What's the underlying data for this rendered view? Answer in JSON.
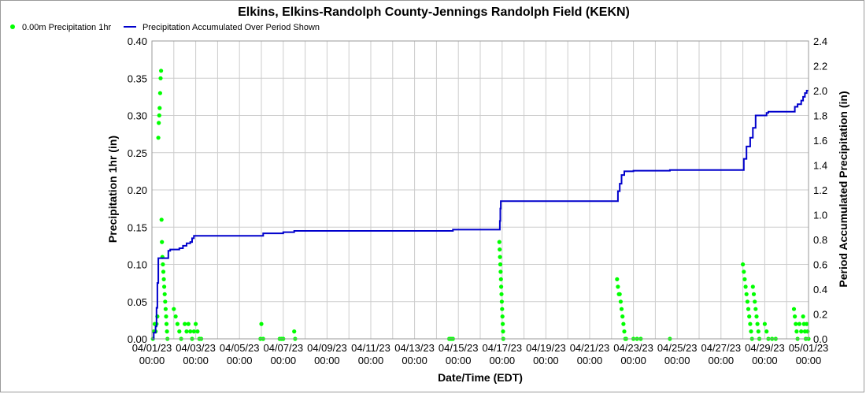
{
  "chart_data": {
    "type": "line",
    "title": "Elkins, Elkins-Randolph County-Jennings Randolph Field (KEKN)",
    "xlabel": "Date/Time (EDT)",
    "ylabel_left": "Precipitation 1hr (in)",
    "ylabel_right": "Period Accumulated Precipitation (in)",
    "ylim_left": [
      0,
      0.4
    ],
    "ylim_right": [
      0,
      2.4
    ],
    "xlim": [
      "2023-04-01T00:00",
      "2023-05-01T00:00"
    ],
    "grid": true,
    "legend_position": "top-left",
    "x_tick_labels": [
      {
        "date": "04/01/23",
        "time": "00:00"
      },
      {
        "date": "04/03/23",
        "time": "00:00"
      },
      {
        "date": "04/05/23",
        "time": "00:00"
      },
      {
        "date": "04/07/23",
        "time": "00:00"
      },
      {
        "date": "04/09/23",
        "time": "00:00"
      },
      {
        "date": "04/11/23",
        "time": "00:00"
      },
      {
        "date": "04/13/23",
        "time": "00:00"
      },
      {
        "date": "04/15/23",
        "time": "00:00"
      },
      {
        "date": "04/17/23",
        "time": "00:00"
      },
      {
        "date": "04/19/23",
        "time": "00:00"
      },
      {
        "date": "04/21/23",
        "time": "00:00"
      },
      {
        "date": "04/23/23",
        "time": "00:00"
      },
      {
        "date": "04/25/23",
        "time": "00:00"
      },
      {
        "date": "04/27/23",
        "time": "00:00"
      },
      {
        "date": "04/29/23",
        "time": "00:00"
      },
      {
        "date": "05/01/23",
        "time": "00:00"
      }
    ],
    "y_left_ticks": [
      "0.00",
      "0.05",
      "0.10",
      "0.15",
      "0.20",
      "0.25",
      "0.30",
      "0.35",
      "0.40"
    ],
    "y_right_ticks": [
      "0.0",
      "0.2",
      "0.4",
      "0.6",
      "0.8",
      "1.0",
      "1.2",
      "1.4",
      "1.6",
      "1.8",
      "2.0",
      "2.2",
      "2.4"
    ],
    "series": [
      {
        "name": "0.00m Precipitation 1hr",
        "type": "scatter",
        "axis": "left",
        "color": "#00ff00",
        "points": [
          [
            "2023-04-01T01:00",
            0.0
          ],
          [
            "2023-04-01T02:00",
            0.01
          ],
          [
            "2023-04-01T03:00",
            0.02
          ],
          [
            "2023-04-01T04:00",
            0.01
          ],
          [
            "2023-04-01T05:00",
            0.02
          ],
          [
            "2023-04-01T06:00",
            0.03
          ],
          [
            "2023-04-01T07:00",
            0.27
          ],
          [
            "2023-04-01T07:30",
            0.29
          ],
          [
            "2023-04-01T08:00",
            0.3
          ],
          [
            "2023-04-01T08:30",
            0.31
          ],
          [
            "2023-04-01T09:00",
            0.33
          ],
          [
            "2023-04-01T09:30",
            0.35
          ],
          [
            "2023-04-01T10:00",
            0.36
          ],
          [
            "2023-04-01T10:30",
            0.16
          ],
          [
            "2023-04-01T11:00",
            0.13
          ],
          [
            "2023-04-01T11:30",
            0.11
          ],
          [
            "2023-04-01T12:00",
            0.1
          ],
          [
            "2023-04-01T12:30",
            0.09
          ],
          [
            "2023-04-01T13:00",
            0.08
          ],
          [
            "2023-04-01T13:30",
            0.07
          ],
          [
            "2023-04-01T14:00",
            0.06
          ],
          [
            "2023-04-01T14:30",
            0.05
          ],
          [
            "2023-04-01T15:00",
            0.04
          ],
          [
            "2023-04-01T15:30",
            0.03
          ],
          [
            "2023-04-01T16:00",
            0.02
          ],
          [
            "2023-04-01T16:30",
            0.01
          ],
          [
            "2023-04-01T17:00",
            0.0
          ],
          [
            "2023-04-02T00:00",
            0.04
          ],
          [
            "2023-04-02T02:00",
            0.03
          ],
          [
            "2023-04-02T04:00",
            0.02
          ],
          [
            "2023-04-02T06:00",
            0.01
          ],
          [
            "2023-04-02T08:00",
            0.0
          ],
          [
            "2023-04-02T12:00",
            0.02
          ],
          [
            "2023-04-02T14:00",
            0.01
          ],
          [
            "2023-04-02T16:00",
            0.02
          ],
          [
            "2023-04-02T18:00",
            0.01
          ],
          [
            "2023-04-02T20:00",
            0.0
          ],
          [
            "2023-04-02T22:00",
            0.01
          ],
          [
            "2023-04-03T00:00",
            0.02
          ],
          [
            "2023-04-03T02:00",
            0.01
          ],
          [
            "2023-04-03T04:00",
            0.0
          ],
          [
            "2023-04-03T06:00",
            0.0
          ],
          [
            "2023-04-06T00:00",
            0.02
          ],
          [
            "2023-04-06T02:00",
            0.0
          ],
          [
            "2023-04-05T23:00",
            0.0
          ],
          [
            "2023-04-06T20:00",
            0.0
          ],
          [
            "2023-04-06T22:00",
            0.0
          ],
          [
            "2023-04-07T00:00",
            0.0
          ],
          [
            "2023-04-07T12:00",
            0.01
          ],
          [
            "2023-04-07T13:00",
            0.0
          ],
          [
            "2023-04-14T14:00",
            0.0
          ],
          [
            "2023-04-14T16:00",
            0.0
          ],
          [
            "2023-04-14T18:00",
            0.0
          ],
          [
            "2023-04-16T21:00",
            0.13
          ],
          [
            "2023-04-16T21:20",
            0.12
          ],
          [
            "2023-04-16T21:40",
            0.11
          ],
          [
            "2023-04-16T22:00",
            0.1
          ],
          [
            "2023-04-16T22:20",
            0.09
          ],
          [
            "2023-04-16T22:40",
            0.08
          ],
          [
            "2023-04-16T23:00",
            0.07
          ],
          [
            "2023-04-16T23:20",
            0.06
          ],
          [
            "2023-04-16T23:40",
            0.05
          ],
          [
            "2023-04-17T00:00",
            0.04
          ],
          [
            "2023-04-17T00:20",
            0.03
          ],
          [
            "2023-04-17T00:40",
            0.02
          ],
          [
            "2023-04-17T01:00",
            0.01
          ],
          [
            "2023-04-17T01:20",
            0.0
          ],
          [
            "2023-04-22T06:00",
            0.08
          ],
          [
            "2023-04-22T07:00",
            0.07
          ],
          [
            "2023-04-22T08:00",
            0.06
          ],
          [
            "2023-04-22T09:00",
            0.06
          ],
          [
            "2023-04-22T10:00",
            0.05
          ],
          [
            "2023-04-22T11:00",
            0.04
          ],
          [
            "2023-04-22T12:00",
            0.03
          ],
          [
            "2023-04-22T13:00",
            0.02
          ],
          [
            "2023-04-22T14:00",
            0.01
          ],
          [
            "2023-04-22T15:00",
            0.0
          ],
          [
            "2023-04-22T16:00",
            0.0
          ],
          [
            "2023-04-23T00:00",
            0.0
          ],
          [
            "2023-04-23T04:00",
            0.0
          ],
          [
            "2023-04-23T08:00",
            0.0
          ],
          [
            "2023-04-24T16:00",
            0.0
          ],
          [
            "2023-04-28T00:00",
            0.1
          ],
          [
            "2023-04-28T01:00",
            0.09
          ],
          [
            "2023-04-28T02:00",
            0.08
          ],
          [
            "2023-04-28T03:00",
            0.07
          ],
          [
            "2023-04-28T04:00",
            0.06
          ],
          [
            "2023-04-28T05:00",
            0.05
          ],
          [
            "2023-04-28T06:00",
            0.04
          ],
          [
            "2023-04-28T07:00",
            0.03
          ],
          [
            "2023-04-28T08:00",
            0.02
          ],
          [
            "2023-04-28T09:00",
            0.01
          ],
          [
            "2023-04-28T10:00",
            0.0
          ],
          [
            "2023-04-28T11:00",
            0.07
          ],
          [
            "2023-04-28T12:00",
            0.06
          ],
          [
            "2023-04-28T13:00",
            0.05
          ],
          [
            "2023-04-28T14:00",
            0.04
          ],
          [
            "2023-04-28T15:00",
            0.03
          ],
          [
            "2023-04-28T16:00",
            0.02
          ],
          [
            "2023-04-28T17:00",
            0.01
          ],
          [
            "2023-04-28T18:00",
            0.0
          ],
          [
            "2023-04-29T00:00",
            0.02
          ],
          [
            "2023-04-29T02:00",
            0.01
          ],
          [
            "2023-04-29T04:00",
            0.0
          ],
          [
            "2023-04-29T08:00",
            0.0
          ],
          [
            "2023-04-29T12:00",
            0.0
          ],
          [
            "2023-04-30T08:00",
            0.04
          ],
          [
            "2023-04-30T09:00",
            0.03
          ],
          [
            "2023-04-30T10:00",
            0.02
          ],
          [
            "2023-04-30T11:00",
            0.01
          ],
          [
            "2023-04-30T12:00",
            0.0
          ],
          [
            "2023-04-30T14:00",
            0.02
          ],
          [
            "2023-04-30T16:00",
            0.01
          ],
          [
            "2023-04-30T18:00",
            0.03
          ],
          [
            "2023-04-30T19:00",
            0.02
          ],
          [
            "2023-04-30T20:00",
            0.01
          ],
          [
            "2023-04-30T21:00",
            0.0
          ],
          [
            "2023-04-30T22:00",
            0.02
          ],
          [
            "2023-04-30T23:00",
            0.01
          ],
          [
            "2023-05-01T00:00",
            0.0
          ]
        ]
      },
      {
        "name": "Precipitation Accumulated Over Period Shown",
        "type": "line",
        "axis": "right",
        "color": "#0000cc",
        "points": [
          [
            "2023-04-01T00:00",
            0.0
          ],
          [
            "2023-04-01T02:00",
            0.05
          ],
          [
            "2023-04-01T04:00",
            0.1
          ],
          [
            "2023-04-01T05:00",
            0.25
          ],
          [
            "2023-04-01T06:00",
            0.45
          ],
          [
            "2023-04-01T07:00",
            0.65
          ],
          [
            "2023-04-01T12:00",
            0.65
          ],
          [
            "2023-04-01T18:00",
            0.71
          ],
          [
            "2023-04-01T20:00",
            0.72
          ],
          [
            "2023-04-02T04:00",
            0.72
          ],
          [
            "2023-04-02T06:00",
            0.73
          ],
          [
            "2023-04-02T10:00",
            0.75
          ],
          [
            "2023-04-02T14:00",
            0.77
          ],
          [
            "2023-04-02T18:00",
            0.78
          ],
          [
            "2023-04-02T20:00",
            0.81
          ],
          [
            "2023-04-02T22:00",
            0.83
          ],
          [
            "2023-04-06T00:00",
            0.83
          ],
          [
            "2023-04-06T02:00",
            0.85
          ],
          [
            "2023-04-06T20:00",
            0.85
          ],
          [
            "2023-04-07T00:00",
            0.86
          ],
          [
            "2023-04-07T12:00",
            0.87
          ],
          [
            "2023-04-14T14:00",
            0.87
          ],
          [
            "2023-04-14T18:00",
            0.88
          ],
          [
            "2023-04-16T21:00",
            0.88
          ],
          [
            "2023-04-16T21:30",
            0.95
          ],
          [
            "2023-04-16T22:00",
            1.05
          ],
          [
            "2023-04-16T22:30",
            1.11
          ],
          [
            "2023-04-22T06:00",
            1.11
          ],
          [
            "2023-04-22T07:00",
            1.19
          ],
          [
            "2023-04-22T09:00",
            1.25
          ],
          [
            "2023-04-22T11:00",
            1.32
          ],
          [
            "2023-04-22T14:00",
            1.35
          ],
          [
            "2023-04-23T00:00",
            1.355
          ],
          [
            "2023-04-24T16:00",
            1.36
          ],
          [
            "2023-04-27T23:00",
            1.36
          ],
          [
            "2023-04-28T01:00",
            1.45
          ],
          [
            "2023-04-28T04:00",
            1.55
          ],
          [
            "2023-04-28T08:00",
            1.62
          ],
          [
            "2023-04-28T11:00",
            1.7
          ],
          [
            "2023-04-28T14:00",
            1.8
          ],
          [
            "2023-04-29T00:00",
            1.8
          ],
          [
            "2023-04-29T02:00",
            1.82
          ],
          [
            "2023-04-29T04:00",
            1.83
          ],
          [
            "2023-04-30T08:00",
            1.83
          ],
          [
            "2023-04-30T09:00",
            1.87
          ],
          [
            "2023-04-30T12:00",
            1.89
          ],
          [
            "2023-04-30T16:00",
            1.92
          ],
          [
            "2023-04-30T18:00",
            1.95
          ],
          [
            "2023-04-30T20:00",
            1.98
          ],
          [
            "2023-04-30T22:00",
            2.0
          ],
          [
            "2023-05-01T00:00",
            2.0
          ]
        ]
      }
    ]
  }
}
